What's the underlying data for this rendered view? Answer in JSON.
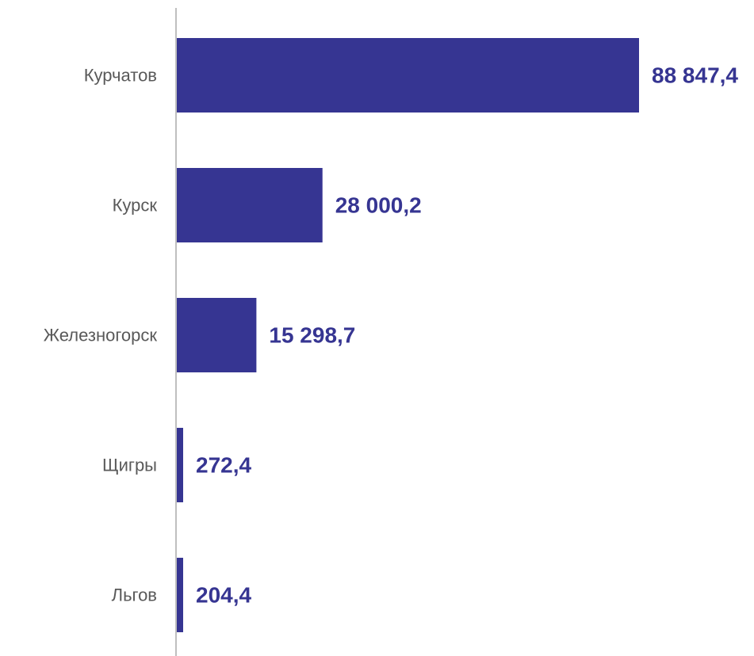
{
  "chart_data": {
    "type": "bar",
    "orientation": "horizontal",
    "categories": [
      "Курчатов",
      "Курск",
      "Железногорск",
      "Щигры",
      "Льгов"
    ],
    "values": [
      88847.4,
      28000.2,
      15298.7,
      272.4,
      204.4
    ],
    "value_labels": [
      "88 847,4",
      "28 000,2",
      "15 298,7",
      "272,4",
      "204,4"
    ],
    "title": "",
    "xlabel": "",
    "ylabel": "",
    "xlim": [
      0,
      88847.4
    ],
    "grid": false,
    "legend": "none"
  },
  "colors": {
    "bar": "#363592",
    "value_label": "#363592",
    "category_label": "#595959",
    "axis": "#bfbfbf"
  }
}
